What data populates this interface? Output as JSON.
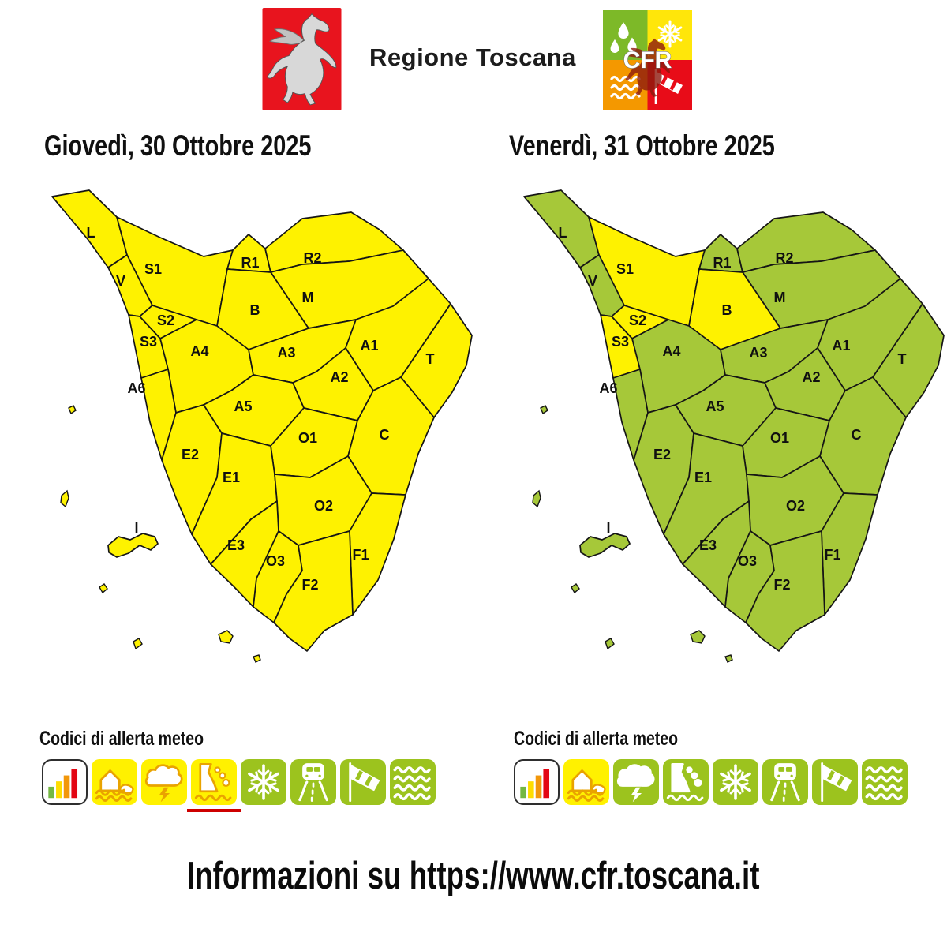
{
  "header": {
    "brand": "Regione Toscana",
    "cfr_logo_text": "CFR"
  },
  "alert_colors": {
    "yellow": "#FEF200",
    "green": "#A6C839"
  },
  "icon_palette": {
    "tile_yellow": "#FFF100",
    "tile_green": "#9CC31E",
    "tile_white": "#FFFFFF",
    "glyph_on_yellow": "#E9A300",
    "glyph_on_green": "#FFFFFF",
    "underline_red": "#CE0000",
    "levels": [
      "#74B843",
      "#FFDD00",
      "#F2970A",
      "#E30613"
    ]
  },
  "logo_colors": {
    "pegasus_red": "#E8141E",
    "cfr_green": "#7DB928",
    "cfr_yellow": "#FFE60A",
    "cfr_orange": "#F49800",
    "cfr_red": "#E80C18"
  },
  "days": [
    {
      "title": "Giovedì, 30 Ottobre 2025",
      "legend_title": "Codici di allerta meteo",
      "zone_alerts": {
        "L": "yellow",
        "V": "yellow",
        "S1": "yellow",
        "S2": "yellow",
        "S3": "yellow",
        "A4": "yellow",
        "A6": "yellow",
        "R1": "yellow",
        "R2": "yellow",
        "B": "yellow",
        "M": "yellow",
        "A3": "yellow",
        "A1": "yellow",
        "A2": "yellow",
        "T": "yellow",
        "A5": "yellow",
        "O1": "yellow",
        "C": "yellow",
        "E2": "yellow",
        "E1": "yellow",
        "O2": "yellow",
        "E3": "yellow",
        "O3": "yellow",
        "F1": "yellow",
        "F2": "yellow",
        "I": "yellow"
      },
      "icons": [
        {
          "name": "alert-levels-icon",
          "bg": "white",
          "underlined": false
        },
        {
          "name": "flood-icon",
          "bg": "yellow",
          "underlined": false
        },
        {
          "name": "thunderstorm-icon",
          "bg": "yellow",
          "underlined": false
        },
        {
          "name": "landslide-icon",
          "bg": "yellow",
          "underlined": true
        },
        {
          "name": "snow-icon",
          "bg": "green",
          "underlined": false
        },
        {
          "name": "road-ice-icon",
          "bg": "green",
          "underlined": false
        },
        {
          "name": "wind-icon",
          "bg": "green",
          "underlined": false
        },
        {
          "name": "sea-storm-icon",
          "bg": "green",
          "underlined": false
        }
      ]
    },
    {
      "title": "Venerdì, 31 Ottobre 2025",
      "legend_title": "Codici di allerta meteo",
      "zone_alerts": {
        "L": "green",
        "V": "green",
        "S1": "yellow",
        "S2": "yellow",
        "S3": "yellow",
        "A4": "green",
        "A6": "green",
        "R1": "green",
        "R2": "green",
        "B": "yellow",
        "M": "green",
        "A3": "green",
        "A1": "green",
        "A2": "green",
        "T": "green",
        "A5": "green",
        "O1": "green",
        "C": "green",
        "E2": "green",
        "E1": "green",
        "O2": "green",
        "E3": "green",
        "O3": "green",
        "F1": "green",
        "F2": "green",
        "I": "green"
      },
      "icons": [
        {
          "name": "alert-levels-icon",
          "bg": "white",
          "underlined": false
        },
        {
          "name": "flood-icon",
          "bg": "yellow",
          "underlined": false
        },
        {
          "name": "thunderstorm-icon",
          "bg": "green",
          "underlined": false
        },
        {
          "name": "landslide-icon",
          "bg": "green",
          "underlined": false
        },
        {
          "name": "snow-icon",
          "bg": "green",
          "underlined": false
        },
        {
          "name": "road-ice-icon",
          "bg": "green",
          "underlined": false
        },
        {
          "name": "wind-icon",
          "bg": "green",
          "underlined": false
        },
        {
          "name": "sea-storm-icon",
          "bg": "green",
          "underlined": false
        }
      ]
    }
  ],
  "footer": {
    "info_text": "Informazioni su https://www.cfr.toscana.it"
  }
}
